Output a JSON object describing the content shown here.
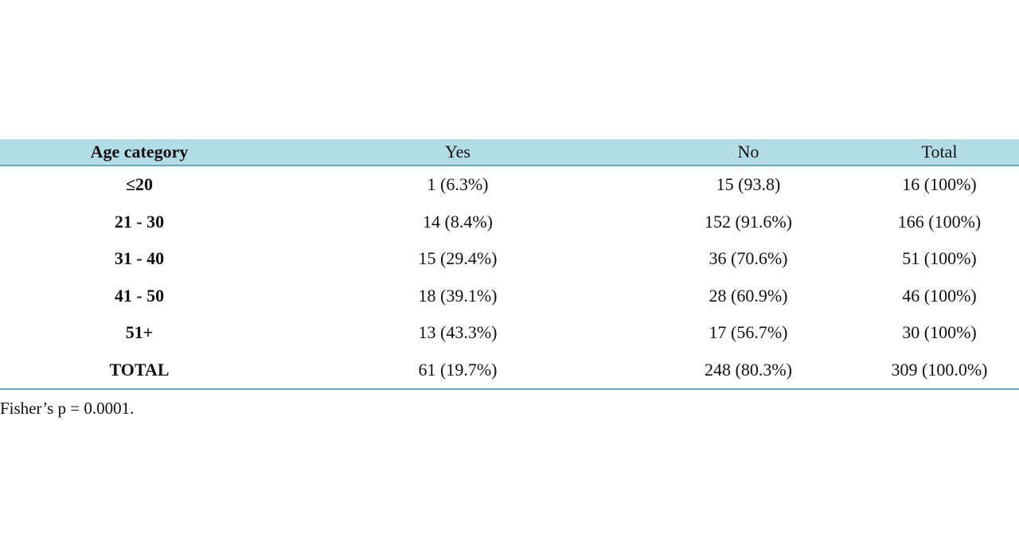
{
  "table": {
    "headers": [
      "Age category",
      "Yes",
      "No",
      "Total"
    ],
    "rows": [
      [
        "≤20",
        "1 (6.3%)",
        "15 (93.8)",
        "16 (100%)"
      ],
      [
        "21 - 30",
        "14 (8.4%)",
        "152 (91.6%)",
        "166 (100%)"
      ],
      [
        "31 - 40",
        "15 (29.4%)",
        "36 (70.6%)",
        "51 (100%)"
      ],
      [
        "41 - 50",
        "18 (39.1%)",
        "28 (60.9%)",
        "46 (100%)"
      ],
      [
        "51+",
        "13 (43.3%)",
        "17 (56.7%)",
        "30 (100%)"
      ],
      [
        "TOTAL",
        "61 (19.7%)",
        "248 (80.3%)",
        "309 (100.0%)"
      ]
    ]
  },
  "footnote": "Fisher’s p = 0.0001.",
  "colors": {
    "header_bg": "#b2dde6",
    "rule": "#6aa9b8"
  }
}
